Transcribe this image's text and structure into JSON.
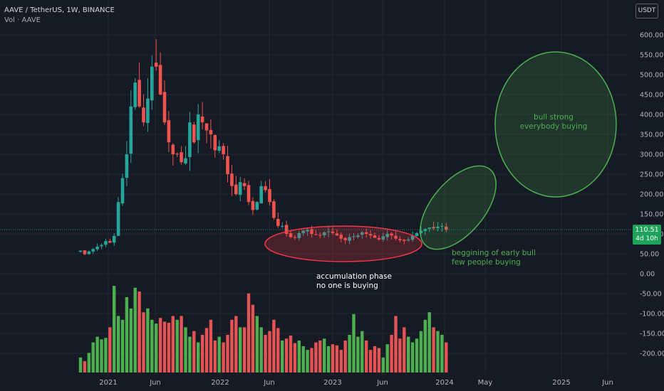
{
  "header": {
    "symbol_line": "AAVE / TetherUS, 1W, BINANCE",
    "volume_label": "Vol · AAVE",
    "currency_button": "USDT"
  },
  "last_price": {
    "value": "110.51",
    "countdown": "4d 10h"
  },
  "colors": {
    "up": "#26a69a",
    "down": "#ef5350",
    "vol_up": "#4caf50",
    "vol_down": "#e45454",
    "background": "#161a25",
    "annotation_green": "#4caf50",
    "annotation_red": "#f23645"
  },
  "annotations": {
    "accumulation": [
      "accumulation phase",
      "no one is buying"
    ],
    "early_bull": [
      "beggining of early bull",
      "few people buying"
    ],
    "bull_strong": [
      "bull strong",
      "everybody buying"
    ]
  },
  "chart_data": {
    "type": "candlestick",
    "price_axis": {
      "ticks": [
        "600.00",
        "550.00",
        "500.00",
        "450.00",
        "400.00",
        "350.00",
        "300.00",
        "250.00",
        "200.00",
        "150.00",
        "100.00",
        "50.00",
        "0.00",
        "-50.00",
        "-100.00",
        "-150.00",
        "-200.00"
      ],
      "ylim": [
        -210,
        640
      ]
    },
    "time_axis": {
      "ticks": [
        "2021",
        "Jun",
        "2022",
        "Jun",
        "2023",
        "Jun",
        "2024",
        "May",
        "2025",
        "Jun"
      ]
    },
    "price_series_weekly_close": [
      58,
      49,
      56,
      62,
      68,
      72,
      82,
      78,
      95,
      180,
      240,
      300,
      420,
      480,
      420,
      380,
      440,
      520,
      520,
      450,
      380,
      330,
      300,
      300,
      280,
      290,
      380,
      330,
      400,
      380,
      360,
      350,
      310,
      320,
      300,
      250,
      220,
      200,
      230,
      220,
      180,
      160,
      180,
      220,
      210,
      180,
      140,
      120,
      120,
      100,
      92,
      90,
      102,
      108,
      110,
      100,
      98,
      96,
      104,
      106,
      102,
      96,
      88,
      84,
      92,
      94,
      96,
      104,
      100,
      96,
      90,
      86,
      94,
      100,
      96,
      88,
      84,
      82,
      86,
      96,
      102,
      108,
      112,
      116,
      114,
      118,
      120,
      110.51
    ],
    "volume_series": [
      40,
      30,
      52,
      80,
      95,
      88,
      92,
      120,
      230,
      150,
      140,
      200,
      170,
      225,
      215,
      160,
      170,
      140,
      130,
      145,
      135,
      132,
      150,
      140,
      150,
      120,
      95,
      110,
      80,
      100,
      118,
      140,
      85,
      95,
      80,
      100,
      140,
      150,
      120,
      120,
      210,
      180,
      150,
      120,
      100,
      110,
      140,
      118,
      85,
      90,
      98,
      78,
      85,
      70,
      60,
      65,
      80,
      85,
      90,
      70,
      75,
      72,
      60,
      85,
      100,
      155,
      95,
      110,
      85,
      60,
      70,
      65,
      40,
      75,
      100,
      150,
      90,
      120,
      95,
      80,
      90,
      110,
      140,
      160,
      120,
      110,
      100,
      80
    ]
  }
}
